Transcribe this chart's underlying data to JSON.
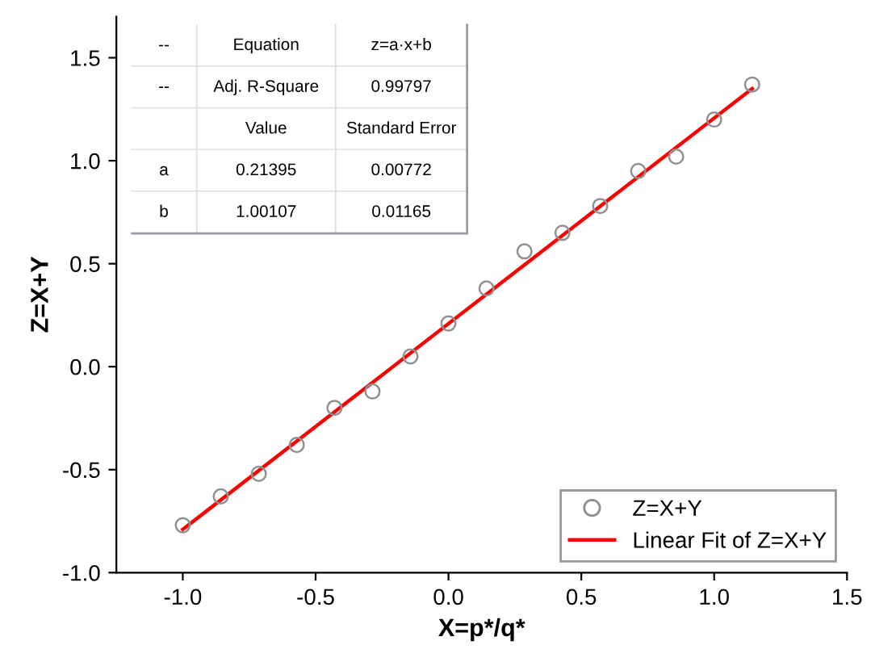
{
  "chart_data": {
    "type": "scatter",
    "xlabel": "X=p*/q*",
    "ylabel": "Z=X+Y",
    "xlim": [
      -1.25,
      1.5
    ],
    "xticks": [
      {
        "value": -1.0,
        "label": "-1.0"
      },
      {
        "value": -0.5,
        "label": "-0.5"
      },
      {
        "value": 0.0,
        "label": "0.0"
      },
      {
        "value": 0.5,
        "label": "0.5"
      },
      {
        "value": 1.0,
        "label": "1.0"
      },
      {
        "value": 1.5,
        "label": "1.5"
      }
    ],
    "ylim": [
      -1.0,
      1.7
    ],
    "yticks": [
      {
        "value": -1.0,
        "label": "-1.0"
      },
      {
        "value": -0.5,
        "label": "-0.5"
      },
      {
        "value": 0.0,
        "label": "0.0"
      },
      {
        "value": 0.5,
        "label": "0.5"
      },
      {
        "value": 1.0,
        "label": "1.0"
      },
      {
        "value": 1.5,
        "label": "1.5"
      }
    ],
    "grid": false,
    "legend": "bottom right",
    "series": [
      {
        "name": "Z=X+Y",
        "type": "scatter",
        "marker": "circle",
        "color": "#909090",
        "x": [
          -1.0,
          -0.857,
          -0.714,
          -0.571,
          -0.429,
          -0.286,
          -0.143,
          0.0,
          0.143,
          0.286,
          0.429,
          0.571,
          0.714,
          0.857,
          1.0,
          1.143
        ],
        "values": [
          -0.77,
          -0.63,
          -0.52,
          -0.38,
          -0.2,
          -0.12,
          0.05,
          0.21,
          0.38,
          0.56,
          0.65,
          0.78,
          0.95,
          1.02,
          1.2,
          1.37
        ]
      },
      {
        "name": "Linear Fit of Z=X+Y",
        "type": "line",
        "color": "#ff0000",
        "x": [
          -1.0,
          1.143
        ],
        "values": [
          -0.79,
          1.35
        ]
      }
    ],
    "annotations": [
      "--",
      "Equation",
      "z=a·x+b",
      "--",
      "Adj. R-Square",
      "0.99797",
      "Value",
      "Standard Error",
      "a",
      "0.21395",
      "0.00772",
      "b",
      "1.00107",
      "0.01165"
    ]
  }
}
